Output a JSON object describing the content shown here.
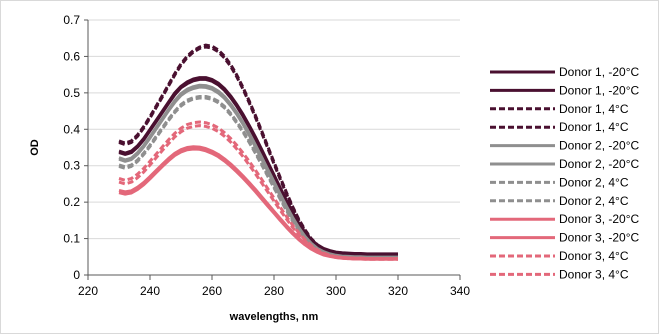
{
  "chart_data": {
    "type": "line",
    "title": "",
    "xlabel": "wavelengths, nm",
    "ylabel": "OD",
    "xlim": [
      220,
      340
    ],
    "ylim": [
      0,
      0.7
    ],
    "xticks": [
      220,
      240,
      260,
      280,
      300,
      320,
      340
    ],
    "yticks": [
      0,
      0.1,
      0.2,
      0.3,
      0.4,
      0.5,
      0.6,
      0.7
    ],
    "xtick_labels": [
      "220",
      "240",
      "260",
      "280",
      "300",
      "320",
      "340"
    ],
    "ytick_labels": [
      "0",
      "0.1",
      "0.2",
      "0.3",
      "0.4",
      "0.5",
      "0.6",
      "0.7"
    ],
    "grid": "horizontal",
    "legend_position": "right",
    "x": [
      230,
      232,
      234,
      236,
      238,
      240,
      242,
      244,
      246,
      248,
      250,
      252,
      254,
      256,
      258,
      260,
      262,
      264,
      266,
      268,
      270,
      272,
      274,
      276,
      278,
      280,
      282,
      284,
      286,
      288,
      290,
      292,
      294,
      296,
      298,
      300,
      302,
      304,
      306,
      308,
      310,
      312,
      314,
      316,
      318,
      320
    ],
    "series": [
      {
        "name": "Donor 1, -20°C",
        "color": "#4a1030",
        "dash": "solid",
        "values": [
          0.34,
          0.335,
          0.34,
          0.355,
          0.375,
          0.4,
          0.425,
          0.45,
          0.475,
          0.5,
          0.518,
          0.53,
          0.538,
          0.542,
          0.542,
          0.537,
          0.527,
          0.512,
          0.492,
          0.468,
          0.441,
          0.411,
          0.379,
          0.345,
          0.31,
          0.275,
          0.24,
          0.205,
          0.172,
          0.142,
          0.117,
          0.097,
          0.083,
          0.073,
          0.067,
          0.063,
          0.061,
          0.06,
          0.059,
          0.059,
          0.058,
          0.058,
          0.058,
          0.058,
          0.058,
          0.058
        ]
      },
      {
        "name": "Donor 1, -20°C",
        "color": "#4a1030",
        "dash": "solid",
        "values": [
          0.336,
          0.331,
          0.336,
          0.351,
          0.371,
          0.396,
          0.421,
          0.446,
          0.471,
          0.495,
          0.514,
          0.525,
          0.533,
          0.537,
          0.537,
          0.532,
          0.522,
          0.507,
          0.487,
          0.463,
          0.436,
          0.406,
          0.374,
          0.34,
          0.305,
          0.27,
          0.235,
          0.201,
          0.168,
          0.139,
          0.114,
          0.094,
          0.081,
          0.071,
          0.065,
          0.061,
          0.059,
          0.058,
          0.057,
          0.057,
          0.056,
          0.056,
          0.056,
          0.056,
          0.056,
          0.056
        ]
      },
      {
        "name": "Donor 1, 4°C",
        "color": "#4a1030",
        "dash": "dash",
        "values": [
          0.368,
          0.362,
          0.368,
          0.385,
          0.408,
          0.435,
          0.464,
          0.493,
          0.523,
          0.553,
          0.58,
          0.601,
          0.616,
          0.626,
          0.631,
          0.628,
          0.618,
          0.601,
          0.578,
          0.549,
          0.515,
          0.478,
          0.438,
          0.396,
          0.353,
          0.31,
          0.268,
          0.227,
          0.188,
          0.153,
          0.124,
          0.1,
          0.083,
          0.071,
          0.063,
          0.058,
          0.055,
          0.053,
          0.052,
          0.051,
          0.05,
          0.05,
          0.05,
          0.05,
          0.05,
          0.05
        ]
      },
      {
        "name": "Donor 1, 4°C",
        "color": "#4a1030",
        "dash": "dash",
        "values": [
          0.364,
          0.358,
          0.364,
          0.381,
          0.404,
          0.431,
          0.46,
          0.489,
          0.519,
          0.549,
          0.576,
          0.597,
          0.612,
          0.622,
          0.626,
          0.623,
          0.613,
          0.596,
          0.573,
          0.544,
          0.51,
          0.473,
          0.433,
          0.391,
          0.348,
          0.305,
          0.263,
          0.223,
          0.185,
          0.15,
          0.121,
          0.098,
          0.081,
          0.069,
          0.061,
          0.056,
          0.053,
          0.051,
          0.05,
          0.049,
          0.048,
          0.048,
          0.048,
          0.048,
          0.048,
          0.048
        ]
      },
      {
        "name": "Donor 2, -20°C",
        "color": "#8f8f8f",
        "dash": "solid",
        "values": [
          0.322,
          0.316,
          0.321,
          0.336,
          0.356,
          0.38,
          0.405,
          0.43,
          0.455,
          0.479,
          0.498,
          0.51,
          0.517,
          0.521,
          0.52,
          0.515,
          0.505,
          0.49,
          0.47,
          0.446,
          0.419,
          0.389,
          0.357,
          0.324,
          0.29,
          0.256,
          0.222,
          0.189,
          0.158,
          0.13,
          0.106,
          0.087,
          0.073,
          0.064,
          0.058,
          0.054,
          0.052,
          0.051,
          0.05,
          0.05,
          0.049,
          0.049,
          0.049,
          0.049,
          0.049,
          0.049
        ]
      },
      {
        "name": "Donor 2, -20°C",
        "color": "#8f8f8f",
        "dash": "solid",
        "values": [
          0.318,
          0.312,
          0.317,
          0.332,
          0.352,
          0.376,
          0.401,
          0.426,
          0.451,
          0.474,
          0.493,
          0.505,
          0.512,
          0.516,
          0.515,
          0.51,
          0.5,
          0.485,
          0.465,
          0.441,
          0.414,
          0.384,
          0.352,
          0.319,
          0.285,
          0.251,
          0.218,
          0.185,
          0.155,
          0.127,
          0.104,
          0.085,
          0.071,
          0.062,
          0.056,
          0.052,
          0.05,
          0.049,
          0.048,
          0.048,
          0.047,
          0.047,
          0.047,
          0.047,
          0.047,
          0.047
        ]
      },
      {
        "name": "Donor 2, 4°C",
        "color": "#8f8f8f",
        "dash": "dash",
        "values": [
          0.302,
          0.297,
          0.302,
          0.316,
          0.335,
          0.357,
          0.381,
          0.405,
          0.428,
          0.45,
          0.468,
          0.48,
          0.487,
          0.49,
          0.49,
          0.486,
          0.477,
          0.463,
          0.444,
          0.421,
          0.396,
          0.368,
          0.338,
          0.307,
          0.275,
          0.243,
          0.211,
          0.18,
          0.151,
          0.125,
          0.102,
          0.084,
          0.071,
          0.062,
          0.056,
          0.052,
          0.05,
          0.049,
          0.048,
          0.048,
          0.047,
          0.047,
          0.047,
          0.047,
          0.047,
          0.047
        ]
      },
      {
        "name": "Donor 2, 4°C",
        "color": "#8f8f8f",
        "dash": "dash",
        "values": [
          0.298,
          0.293,
          0.298,
          0.312,
          0.331,
          0.353,
          0.377,
          0.401,
          0.424,
          0.446,
          0.464,
          0.476,
          0.483,
          0.486,
          0.486,
          0.482,
          0.473,
          0.459,
          0.44,
          0.417,
          0.392,
          0.364,
          0.334,
          0.303,
          0.271,
          0.239,
          0.208,
          0.177,
          0.148,
          0.122,
          0.1,
          0.082,
          0.069,
          0.06,
          0.054,
          0.05,
          0.048,
          0.047,
          0.046,
          0.046,
          0.045,
          0.045,
          0.045,
          0.045,
          0.045,
          0.045
        ]
      },
      {
        "name": "Donor 3, -20°C",
        "color": "#e3687a",
        "dash": "solid",
        "values": [
          0.232,
          0.228,
          0.231,
          0.241,
          0.254,
          0.27,
          0.287,
          0.304,
          0.32,
          0.334,
          0.344,
          0.35,
          0.352,
          0.351,
          0.347,
          0.34,
          0.331,
          0.319,
          0.305,
          0.289,
          0.272,
          0.254,
          0.235,
          0.215,
          0.195,
          0.175,
          0.155,
          0.136,
          0.118,
          0.101,
          0.086,
          0.074,
          0.065,
          0.058,
          0.053,
          0.05,
          0.048,
          0.047,
          0.046,
          0.046,
          0.045,
          0.045,
          0.045,
          0.045,
          0.045,
          0.045
        ]
      },
      {
        "name": "Donor 3, -20°C",
        "color": "#e3687a",
        "dash": "solid",
        "values": [
          0.226,
          0.222,
          0.225,
          0.235,
          0.248,
          0.264,
          0.281,
          0.298,
          0.314,
          0.328,
          0.338,
          0.344,
          0.346,
          0.345,
          0.341,
          0.334,
          0.325,
          0.313,
          0.299,
          0.283,
          0.266,
          0.248,
          0.229,
          0.209,
          0.189,
          0.17,
          0.15,
          0.131,
          0.113,
          0.097,
          0.083,
          0.071,
          0.062,
          0.055,
          0.051,
          0.048,
          0.046,
          0.045,
          0.044,
          0.044,
          0.043,
          0.043,
          0.043,
          0.043,
          0.043,
          0.043
        ]
      },
      {
        "name": "Donor 3, 4°C",
        "color": "#e3687a",
        "dash": "dash",
        "values": [
          0.265,
          0.26,
          0.265,
          0.277,
          0.293,
          0.312,
          0.332,
          0.352,
          0.371,
          0.389,
          0.403,
          0.413,
          0.418,
          0.42,
          0.418,
          0.413,
          0.404,
          0.391,
          0.375,
          0.356,
          0.335,
          0.312,
          0.288,
          0.263,
          0.237,
          0.211,
          0.186,
          0.161,
          0.137,
          0.116,
          0.097,
          0.081,
          0.069,
          0.06,
          0.054,
          0.05,
          0.048,
          0.047,
          0.046,
          0.046,
          0.045,
          0.045,
          0.045,
          0.045,
          0.045,
          0.045
        ]
      },
      {
        "name": "Donor 3, 4°C",
        "color": "#e3687a",
        "dash": "dash",
        "values": [
          0.255,
          0.25,
          0.255,
          0.267,
          0.283,
          0.302,
          0.322,
          0.342,
          0.361,
          0.379,
          0.393,
          0.403,
          0.408,
          0.41,
          0.408,
          0.403,
          0.394,
          0.381,
          0.365,
          0.346,
          0.325,
          0.302,
          0.278,
          0.253,
          0.228,
          0.203,
          0.178,
          0.154,
          0.131,
          0.111,
          0.093,
          0.078,
          0.066,
          0.058,
          0.052,
          0.048,
          0.046,
          0.045,
          0.044,
          0.044,
          0.043,
          0.043,
          0.043,
          0.043,
          0.043,
          0.043
        ]
      }
    ]
  }
}
